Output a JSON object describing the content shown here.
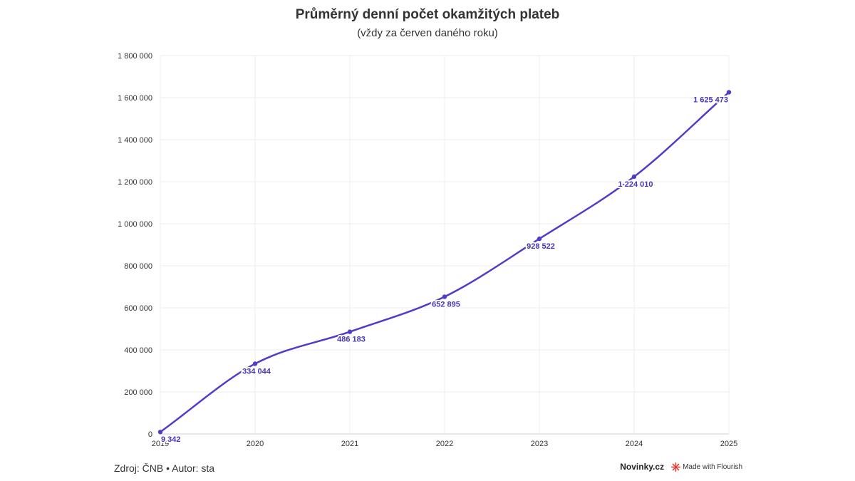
{
  "chart_data": {
    "type": "line",
    "title": "Průměrný denní počet okamžitých plateb",
    "subtitle": "(vždy za červen daného roku)",
    "x": [
      "2019",
      "2020",
      "2021",
      "2022",
      "2023",
      "2024",
      "2025"
    ],
    "series": [
      {
        "values": [
          9342,
          334044,
          486183,
          652895,
          928522,
          1224010,
          1625473
        ],
        "labels": [
          "9 342",
          "334 044",
          "486 183",
          "652 895",
          "928 522",
          "1 224 010",
          "1 625 473"
        ]
      }
    ],
    "y_ticks": [
      0,
      200000,
      400000,
      600000,
      800000,
      1000000,
      1200000,
      1400000,
      1600000,
      1800000
    ],
    "y_tick_labels": [
      "0",
      "200 000",
      "400 000",
      "600 000",
      "800 000",
      "1 000 000",
      "1 200 000",
      "1 400 000",
      "1 600 000",
      "1 800 000"
    ],
    "ylim": [
      0,
      1800000
    ],
    "grid": true,
    "line_color": "#4f3cc9",
    "label_color": "#4535b8"
  },
  "footer": {
    "source": "Zdroj: ČNB • Autor: sta",
    "brand": "Novinky.cz",
    "flourish_label": "Made with Flourish",
    "flourish_icon": "flourish-icon",
    "flourish_color": "#e63329"
  }
}
